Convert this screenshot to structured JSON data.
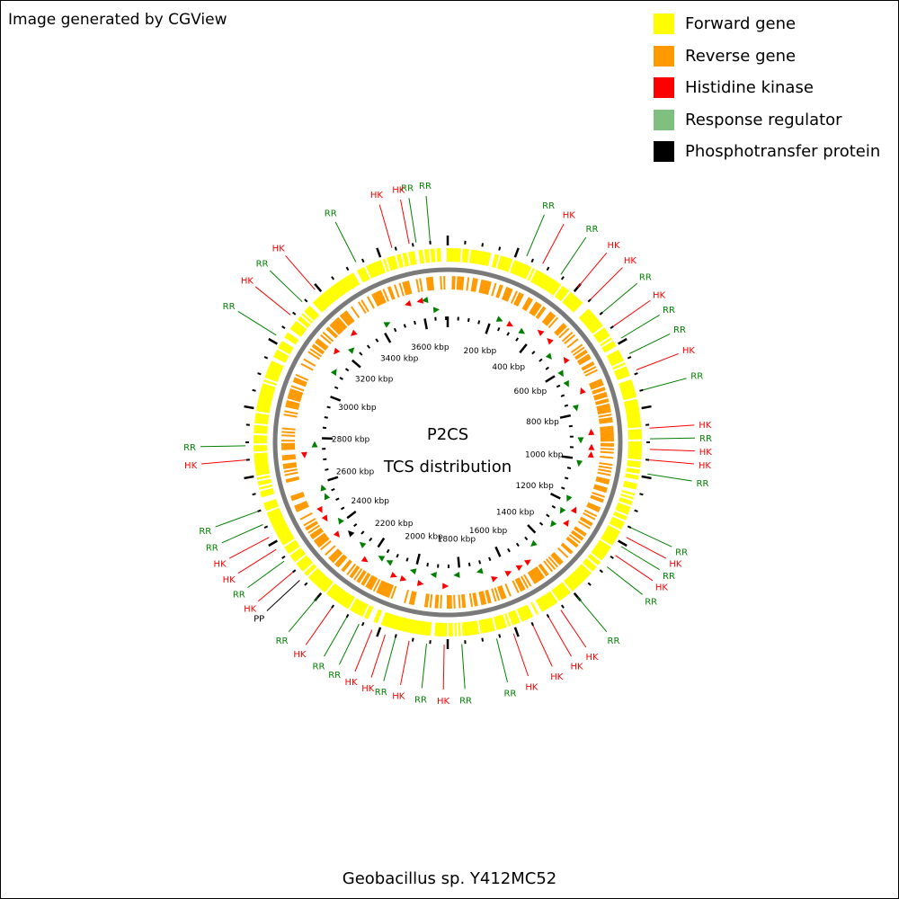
{
  "credit": "Image generated by CGView",
  "legend": [
    {
      "label": "Forward gene",
      "color": "#FFFF00"
    },
    {
      "label": "Reverse gene",
      "color": "#FF9900"
    },
    {
      "label": "Histidine kinase",
      "color": "#FF0000"
    },
    {
      "label": "Response regulator",
      "color": "#7FBF7F"
    },
    {
      "label": "Phosphotransfer protein",
      "color": "#000000"
    }
  ],
  "center_title": [
    "P2CS",
    "TCS distribution"
  ],
  "organism": "Geobacillus sp. Y412MC52",
  "genome_ruler_labels": [
    {
      "kbp": 200,
      "label": "200 kbp"
    },
    {
      "kbp": 400,
      "label": "400 kbp"
    },
    {
      "kbp": 600,
      "label": "600 kbp"
    },
    {
      "kbp": 800,
      "label": "800 kbp"
    },
    {
      "kbp": 1000,
      "label": "1000 kbp"
    },
    {
      "kbp": 1200,
      "label": "1200 kbp"
    },
    {
      "kbp": 1400,
      "label": "1400 kbp"
    },
    {
      "kbp": 1600,
      "label": "1600 kbp"
    },
    {
      "kbp": 1800,
      "label": "1800 kbp"
    },
    {
      "kbp": 2000,
      "label": "2000 kbp"
    },
    {
      "kbp": 2200,
      "label": "2200 kbp"
    },
    {
      "kbp": 2400,
      "label": "2400 kbp"
    },
    {
      "kbp": 2600,
      "label": "2600 kbp"
    },
    {
      "kbp": 2800,
      "label": "2800 kbp"
    },
    {
      "kbp": 3000,
      "label": "3000 kbp"
    },
    {
      "kbp": 3200,
      "label": "3200 kbp"
    },
    {
      "kbp": 3400,
      "label": "3400 kbp"
    },
    {
      "kbp": 3600,
      "label": "3600 kbp"
    }
  ],
  "genome_length_kbp": 3708,
  "tcs_features": [
    {
      "type": "HK",
      "angle": -16,
      "strand": "reverse"
    },
    {
      "type": "RR",
      "angle": -9,
      "strand": "reverse"
    },
    {
      "type": "RR",
      "angle": 23,
      "strand": "forward"
    },
    {
      "type": "HK",
      "angle": 28,
      "strand": "forward"
    },
    {
      "type": "RR",
      "angle": 34,
      "strand": "forward"
    },
    {
      "type": "HK",
      "angle": 40,
      "strand": "reverse"
    },
    {
      "type": "HK",
      "angle": 45,
      "strand": "reverse"
    },
    {
      "type": "RR",
      "angle": 50,
      "strand": "forward"
    },
    {
      "type": "HK",
      "angle": 55,
      "strand": "reverse"
    },
    {
      "type": "RR",
      "angle": 59,
      "strand": "forward"
    },
    {
      "type": "RR",
      "angle": 64,
      "strand": "forward"
    },
    {
      "type": "HK",
      "angle": 69,
      "strand": "reverse"
    },
    {
      "type": "RR",
      "angle": 75,
      "strand": "forward"
    },
    {
      "type": "HK",
      "angle": 86,
      "strand": "reverse"
    },
    {
      "type": "RR",
      "angle": 89,
      "strand": "forward"
    },
    {
      "type": "HK",
      "angle": 92,
      "strand": "reverse"
    },
    {
      "type": "HK",
      "angle": 95,
      "strand": "reverse"
    },
    {
      "type": "RR",
      "angle": 99,
      "strand": "forward"
    },
    {
      "type": "RR",
      "angle": 115,
      "strand": "forward"
    },
    {
      "type": "HK",
      "angle": 118,
      "strand": "reverse"
    },
    {
      "type": "RR",
      "angle": 121,
      "strand": "forward"
    },
    {
      "type": "HK",
      "angle": 124,
      "strand": "reverse"
    },
    {
      "type": "RR",
      "angle": 128,
      "strand": "forward"
    },
    {
      "type": "RR",
      "angle": 140,
      "strand": "forward"
    },
    {
      "type": "HK",
      "angle": 146,
      "strand": "reverse"
    },
    {
      "type": "HK",
      "angle": 150,
      "strand": "reverse"
    },
    {
      "type": "HK",
      "angle": 155,
      "strand": "reverse"
    },
    {
      "type": "HK",
      "angle": 161,
      "strand": "reverse"
    },
    {
      "type": "RR",
      "angle": 166,
      "strand": "forward"
    },
    {
      "type": "RR",
      "angle": 176,
      "strand": "forward"
    },
    {
      "type": "HK",
      "angle": 181,
      "strand": "reverse"
    },
    {
      "type": "RR",
      "angle": 186,
      "strand": "forward"
    },
    {
      "type": "HK",
      "angle": 191,
      "strand": "reverse"
    },
    {
      "type": "RR",
      "angle": 195,
      "strand": "forward"
    },
    {
      "type": "HK",
      "angle": 198,
      "strand": "reverse"
    },
    {
      "type": "HK",
      "angle": 202,
      "strand": "reverse"
    },
    {
      "type": "RR",
      "angle": 206,
      "strand": "forward"
    },
    {
      "type": "RR",
      "angle": 210,
      "strand": "forward"
    },
    {
      "type": "HK",
      "angle": 215,
      "strand": "reverse"
    },
    {
      "type": "RR",
      "angle": 220,
      "strand": "forward"
    },
    {
      "type": "PP",
      "angle": 227,
      "strand": "forward"
    },
    {
      "type": "HK",
      "angle": 230,
      "strand": "reverse"
    },
    {
      "type": "RR",
      "angle": 234,
      "strand": "forward"
    },
    {
      "type": "HK",
      "angle": 238,
      "strand": "reverse"
    },
    {
      "type": "HK",
      "angle": 242,
      "strand": "reverse"
    },
    {
      "type": "RR",
      "angle": 246,
      "strand": "forward"
    },
    {
      "type": "RR",
      "angle": 250,
      "strand": "forward"
    },
    {
      "type": "HK",
      "angle": 265,
      "strand": "reverse"
    },
    {
      "type": "RR",
      "angle": 269,
      "strand": "forward"
    },
    {
      "type": "RR",
      "angle": 302,
      "strand": "forward"
    },
    {
      "type": "HK",
      "angle": 309,
      "strand": "reverse"
    },
    {
      "type": "RR",
      "angle": 314,
      "strand": "forward"
    },
    {
      "type": "HK",
      "angle": 319,
      "strand": "reverse"
    },
    {
      "type": "RR",
      "angle": 333,
      "strand": "forward"
    },
    {
      "type": "HK",
      "angle": 349,
      "strand": "reverse"
    },
    {
      "type": "RR",
      "angle": 355,
      "strand": "forward"
    }
  ],
  "feature_colors": {
    "HK": "#FF0000",
    "RR": "#008000",
    "PP": "#000000"
  }
}
